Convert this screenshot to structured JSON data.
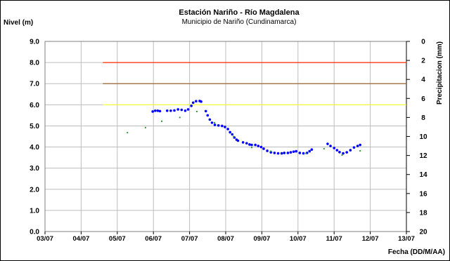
{
  "chart_data": {
    "type": "line",
    "title": "Estación Nariño - Río Magdalena",
    "subtitle": "Municipio de Nariño (Cundinamarca)",
    "ylabel": "Nivel (m)",
    "y2label": "Precipitacion (mm)",
    "xlabel": "Fecha (DD/M/AA)",
    "ylim": [
      0,
      9
    ],
    "y2lim": [
      0,
      20
    ],
    "y2_inverted": true,
    "yticks": [
      "0.0",
      "1.0",
      "2.0",
      "3.0",
      "4.0",
      "5.0",
      "6.0",
      "7.0",
      "8.0",
      "9.0"
    ],
    "y2ticks": [
      "0",
      "2",
      "4",
      "6",
      "8",
      "10",
      "12",
      "14",
      "16",
      "18",
      "20"
    ],
    "xticks": [
      "03/07",
      "04/07",
      "05/07",
      "06/07",
      "07/07",
      "08/07",
      "09/07",
      "10/07",
      "11/07",
      "12/07",
      "13/07"
    ],
    "grid": true,
    "thresholds": [
      {
        "value": 8.0,
        "color": "#ff2a00",
        "x_start": 1.6,
        "x_end": 10
      },
      {
        "value": 7.0,
        "color": "#996633",
        "x_start": 1.6,
        "x_end": 10
      },
      {
        "value": 6.0,
        "color": "#ffff33",
        "x_start": 1.6,
        "x_end": 10
      }
    ],
    "series": [
      {
        "type": "line",
        "color": "#0000ff",
        "points": [
          [
            2.98,
            5.68
          ],
          [
            3.05,
            5.72
          ],
          [
            3.12,
            5.72
          ],
          [
            3.18,
            5.7
          ],
          [
            3.38,
            5.72
          ],
          [
            3.48,
            5.72
          ],
          [
            3.58,
            5.73
          ],
          [
            3.68,
            5.78
          ],
          [
            3.78,
            5.76
          ],
          [
            3.88,
            5.72
          ],
          [
            3.96,
            5.78
          ],
          [
            4.05,
            5.95
          ],
          [
            4.1,
            6.1
          ],
          [
            4.18,
            6.17
          ],
          [
            4.28,
            6.18
          ],
          [
            4.32,
            6.15
          ],
          [
            4.45,
            5.7
          ],
          [
            4.5,
            5.5
          ],
          [
            4.56,
            5.3
          ],
          [
            4.62,
            5.15
          ],
          [
            4.7,
            5.05
          ],
          [
            4.8,
            5.02
          ],
          [
            4.9,
            5.0
          ],
          [
            4.98,
            4.95
          ],
          [
            5.06,
            4.85
          ],
          [
            5.12,
            4.7
          ],
          [
            5.18,
            4.6
          ],
          [
            5.24,
            4.45
          ],
          [
            5.3,
            4.35
          ],
          [
            5.34,
            4.3
          ],
          [
            5.48,
            4.22
          ],
          [
            5.58,
            4.18
          ],
          [
            5.66,
            4.12
          ],
          [
            5.72,
            4.1
          ],
          [
            5.82,
            4.1
          ],
          [
            5.9,
            4.05
          ],
          [
            5.98,
            4.0
          ],
          [
            6.05,
            3.92
          ],
          [
            6.15,
            3.82
          ],
          [
            6.25,
            3.75
          ],
          [
            6.35,
            3.72
          ],
          [
            6.45,
            3.7
          ],
          [
            6.55,
            3.7
          ],
          [
            6.62,
            3.72
          ],
          [
            6.72,
            3.72
          ],
          [
            6.8,
            3.75
          ],
          [
            6.88,
            3.78
          ],
          [
            6.95,
            3.8
          ],
          [
            7.05,
            3.72
          ],
          [
            7.15,
            3.7
          ],
          [
            7.25,
            3.72
          ],
          [
            7.32,
            3.8
          ],
          [
            7.38,
            3.88
          ],
          [
            7.82,
            4.15
          ],
          [
            7.9,
            4.05
          ],
          [
            8.0,
            3.95
          ],
          [
            8.08,
            3.85
          ],
          [
            8.15,
            3.76
          ],
          [
            8.25,
            3.7
          ],
          [
            8.35,
            3.75
          ],
          [
            8.45,
            3.85
          ],
          [
            8.55,
            3.98
          ],
          [
            8.65,
            4.05
          ],
          [
            8.72,
            4.1
          ]
        ]
      },
      {
        "type": "scatter",
        "color": "#339933",
        "points": [
          [
            2.28,
            4.68
          ],
          [
            2.78,
            4.92
          ],
          [
            3.23,
            5.22
          ],
          [
            3.73,
            5.4
          ],
          [
            4.2,
            5.68
          ],
          [
            4.69,
            5.15
          ],
          [
            5.22,
            4.5
          ],
          [
            5.72,
            3.98
          ],
          [
            6.24,
            3.8
          ],
          [
            7.22,
            3.7
          ],
          [
            7.72,
            3.92
          ],
          [
            8.22,
            3.62
          ],
          [
            8.72,
            3.82
          ]
        ]
      }
    ]
  }
}
